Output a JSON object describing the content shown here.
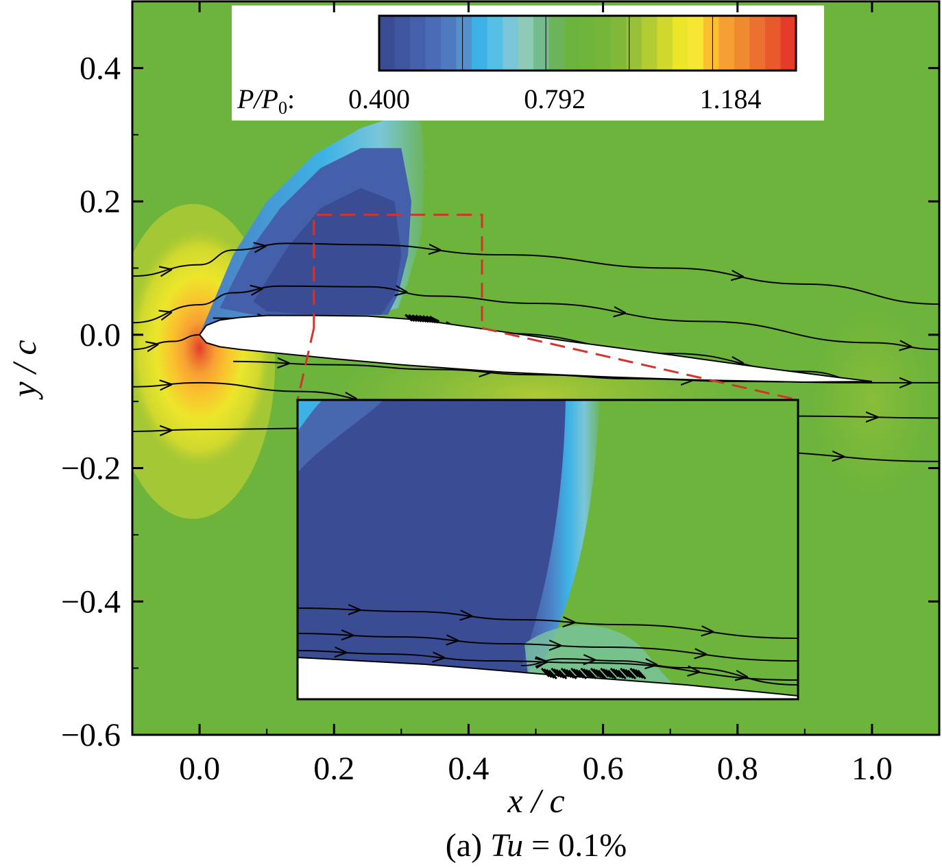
{
  "chart_data": {
    "type": "heatmap",
    "subtype": "pressure contour with streamlines",
    "xlabel": "x / c",
    "ylabel": "y / c",
    "xlim": [
      -0.1,
      1.1
    ],
    "ylim": [
      -0.6,
      0.5
    ],
    "x_ticks": [
      "0.0",
      "0.2",
      "0.4",
      "0.6",
      "0.8",
      "1.0"
    ],
    "x_tick_values": [
      0.0,
      0.2,
      0.4,
      0.6,
      0.8,
      1.0
    ],
    "y_ticks": [
      "0.4",
      "0.2",
      "0.0",
      "−0.2",
      "−0.4",
      "−0.6"
    ],
    "y_tick_values": [
      0.4,
      0.2,
      0.0,
      -0.2,
      -0.4,
      -0.6
    ],
    "caption": {
      "prefix": "(a) ",
      "var": "Tu",
      "rest": " = 0.1%"
    },
    "colorbar": {
      "label_main": "P/P",
      "label_sub": "0",
      "label_suffix": ":",
      "tick_labels": [
        "0.400",
        "0.792",
        "1.184"
      ],
      "tick_values": [
        0.4,
        0.792,
        1.184
      ],
      "range": [
        0.4,
        1.33
      ],
      "colors": [
        "#3a4d94",
        "#3f55a0",
        "#4560aa",
        "#4a6cb4",
        "#4e7bc0",
        "#5690cc",
        "#3db2e6",
        "#55bfe6",
        "#7ac6d8",
        "#8ecab7",
        "#74bc8e",
        "#6cb45a",
        "#6db43e",
        "#6fb53c",
        "#74b53a",
        "#82b837",
        "#99c138",
        "#b4cc33",
        "#d0d82e",
        "#ece62b",
        "#f5e733",
        "#fbc02e",
        "#f6a034",
        "#f08a30",
        "#ec7030",
        "#e85a2c",
        "#e43c2a"
      ]
    },
    "background_color": "#6cb43c",
    "airfoil": {
      "upper": [
        [
          0.0,
          0.0
        ],
        [
          0.01,
          0.014
        ],
        [
          0.03,
          0.022
        ],
        [
          0.06,
          0.026
        ],
        [
          0.1,
          0.029
        ],
        [
          0.17,
          0.029
        ],
        [
          0.25,
          0.028
        ],
        [
          0.33,
          0.022
        ],
        [
          0.42,
          0.009
        ],
        [
          0.55,
          -0.01
        ],
        [
          0.7,
          -0.03
        ],
        [
          0.85,
          -0.051
        ],
        [
          0.95,
          -0.064
        ],
        [
          1.0,
          -0.07
        ]
      ],
      "lower": [
        [
          0.0,
          0.0
        ],
        [
          0.01,
          -0.012
        ],
        [
          0.03,
          -0.018
        ],
        [
          0.06,
          -0.022
        ],
        [
          0.1,
          -0.026
        ],
        [
          0.2,
          -0.036
        ],
        [
          0.3,
          -0.045
        ],
        [
          0.45,
          -0.056
        ],
        [
          0.6,
          -0.063
        ],
        [
          0.75,
          -0.068
        ],
        [
          0.9,
          -0.071
        ],
        [
          1.0,
          -0.07
        ]
      ]
    },
    "streamlines": [
      [
        [
          -0.1,
          0.088
        ],
        [
          0.0,
          0.105
        ],
        [
          0.05,
          0.127
        ],
        [
          0.13,
          0.137
        ],
        [
          0.25,
          0.135
        ],
        [
          0.45,
          0.12
        ],
        [
          0.7,
          0.1
        ],
        [
          0.9,
          0.076
        ],
        [
          1.1,
          0.046
        ]
      ],
      [
        [
          -0.1,
          0.018
        ],
        [
          0.0,
          0.045
        ],
        [
          0.05,
          0.063
        ],
        [
          0.12,
          0.073
        ],
        [
          0.25,
          0.072
        ],
        [
          0.35,
          0.058
        ],
        [
          0.5,
          0.047
        ],
        [
          0.75,
          0.02
        ],
        [
          1.0,
          -0.012
        ],
        [
          1.1,
          -0.022
        ]
      ],
      [
        [
          -0.1,
          -0.022
        ],
        [
          -0.04,
          -0.01
        ],
        [
          0.0,
          0.0
        ]
      ],
      [
        [
          0.02,
          0.025
        ],
        [
          0.17,
          0.022
        ],
        [
          0.3,
          0.02
        ],
        [
          0.45,
          0.002
        ],
        [
          0.7,
          -0.028
        ],
        [
          0.9,
          -0.055
        ],
        [
          1.0,
          -0.072
        ],
        [
          1.1,
          -0.072
        ]
      ],
      [
        [
          -0.1,
          -0.078
        ],
        [
          0.0,
          -0.072
        ],
        [
          0.15,
          -0.085
        ],
        [
          0.3,
          -0.105
        ],
        [
          0.45,
          -0.115
        ],
        [
          0.7,
          -0.12
        ],
        [
          0.9,
          -0.122
        ],
        [
          1.1,
          -0.125
        ]
      ],
      [
        [
          -0.1,
          -0.145
        ],
        [
          0.0,
          -0.142
        ],
        [
          0.2,
          -0.14
        ],
        [
          0.5,
          -0.16
        ],
        [
          0.8,
          -0.175
        ],
        [
          1.1,
          -0.19
        ]
      ],
      [
        [
          0.05,
          -0.04
        ],
        [
          0.2,
          -0.045
        ],
        [
          0.35,
          -0.052
        ],
        [
          0.5,
          -0.06
        ],
        [
          0.65,
          -0.066
        ],
        [
          0.8,
          -0.07
        ],
        [
          1.0,
          -0.072
        ]
      ]
    ],
    "zoom_region": {
      "x": [
        0.17,
        0.42
      ],
      "y": [
        0.01,
        0.18
      ]
    },
    "separation_bubble_x": [
      0.31,
      0.35
    ]
  }
}
